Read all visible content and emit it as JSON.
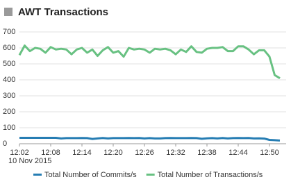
{
  "chart_data": {
    "type": "line",
    "title": "AWT Transactions",
    "categories": [
      "12:02",
      null,
      null,
      null,
      null,
      null,
      "12:08",
      null,
      null,
      null,
      null,
      null,
      "12:14",
      null,
      null,
      null,
      null,
      null,
      "12:20",
      null,
      null,
      null,
      null,
      null,
      "12:26",
      null,
      null,
      null,
      null,
      null,
      "12:32",
      null,
      null,
      null,
      null,
      null,
      "12:38",
      null,
      null,
      null,
      null,
      null,
      "12:44",
      null,
      null,
      null,
      null,
      null,
      "12:50",
      null,
      null
    ],
    "date_label": "10 Nov 2015",
    "ylim": [
      0,
      700
    ],
    "yticks": [
      0,
      100,
      200,
      300,
      400,
      500,
      600,
      700
    ],
    "grid": true,
    "legend": "bottom",
    "series": [
      {
        "name": "Total Number of Commits/s",
        "color": "#267db3",
        "values": [
          37,
          37,
          37,
          37,
          37,
          37,
          37,
          37,
          33,
          35,
          35,
          35,
          36,
          35,
          30,
          33,
          36,
          33,
          35,
          35,
          35,
          36,
          35,
          36,
          33,
          35,
          33,
          33,
          35,
          36,
          35,
          35,
          35,
          36,
          35,
          31,
          34,
          35,
          33,
          36,
          33,
          35,
          36,
          35,
          36,
          33,
          34,
          32,
          24,
          22,
          20
        ]
      },
      {
        "name": "Total Number of Transactions/s",
        "color": "#68c182",
        "values": [
          555,
          615,
          580,
          600,
          595,
          570,
          605,
          590,
          595,
          590,
          560,
          590,
          600,
          570,
          590,
          550,
          585,
          605,
          570,
          580,
          545,
          600,
          590,
          595,
          590,
          570,
          595,
          590,
          595,
          585,
          560,
          590,
          575,
          610,
          575,
          570,
          595,
          600,
          600,
          605,
          580,
          580,
          610,
          610,
          590,
          560,
          585,
          585,
          545,
          430,
          410
        ]
      }
    ]
  }
}
